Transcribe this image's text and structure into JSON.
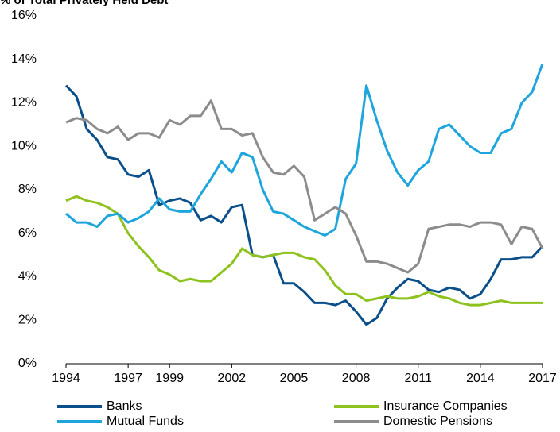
{
  "chart_data": {
    "type": "line",
    "title": "% of Total Privately Held Debt",
    "x": [
      1994,
      1994.5,
      1995,
      1995.5,
      1996,
      1996.5,
      1997,
      1997.5,
      1998,
      1998.5,
      1999,
      1999.5,
      2000,
      2000.5,
      2001,
      2001.5,
      2002,
      2002.5,
      2003,
      2003.5,
      2004,
      2004.5,
      2005,
      2005.5,
      2006,
      2006.5,
      2007,
      2007.5,
      2008,
      2008.5,
      2009,
      2009.5,
      2010,
      2010.5,
      2011,
      2011.5,
      2012,
      2012.5,
      2013,
      2013.5,
      2014,
      2014.5,
      2015,
      2015.5,
      2016,
      2016.5,
      2017
    ],
    "series": [
      {
        "name": "Banks",
        "color": "#0b4f8a",
        "values": [
          12.8,
          12.3,
          10.8,
          10.3,
          9.5,
          9.4,
          8.7,
          8.6,
          8.9,
          7.3,
          7.5,
          7.6,
          7.4,
          6.6,
          6.8,
          6.5,
          7.2,
          7.3,
          5.0,
          4.9,
          5.0,
          3.7,
          3.7,
          3.3,
          2.8,
          2.8,
          2.7,
          2.9,
          2.4,
          1.8,
          2.1,
          3.0,
          3.5,
          3.9,
          3.8,
          3.4,
          3.3,
          3.5,
          3.4,
          3.0,
          3.2,
          3.9,
          4.8,
          4.8,
          4.9,
          4.9,
          5.4
        ]
      },
      {
        "name": "Insurance Companies",
        "color": "#8dc21f",
        "values": [
          7.5,
          7.7,
          7.5,
          7.4,
          7.2,
          6.9,
          6.0,
          5.4,
          4.9,
          4.3,
          4.1,
          3.8,
          3.9,
          3.8,
          3.8,
          4.2,
          4.6,
          5.3,
          5.0,
          4.9,
          5.0,
          5.1,
          5.1,
          4.9,
          4.8,
          4.3,
          3.6,
          3.2,
          3.2,
          2.9,
          3.0,
          3.1,
          3.0,
          3.0,
          3.1,
          3.3,
          3.1,
          3.0,
          2.8,
          2.7,
          2.7,
          2.8,
          2.9,
          2.8,
          2.8,
          2.8,
          2.8
        ]
      },
      {
        "name": "Mutual Funds",
        "color": "#1ea5dc",
        "values": [
          6.9,
          6.5,
          6.5,
          6.3,
          6.8,
          6.9,
          6.5,
          6.7,
          7.0,
          7.6,
          7.1,
          7.0,
          7.0,
          7.8,
          8.5,
          9.3,
          8.8,
          9.7,
          9.5,
          8.0,
          7.0,
          6.9,
          6.6,
          6.3,
          6.1,
          5.9,
          6.2,
          8.5,
          9.2,
          12.8,
          11.2,
          9.8,
          8.8,
          8.2,
          8.9,
          9.3,
          10.8,
          11.0,
          10.5,
          10.0,
          9.7,
          9.7,
          10.6,
          10.8,
          12.0,
          12.5,
          13.8
        ]
      },
      {
        "name": "Domestic Pensions",
        "color": "#8c8c8c",
        "values": [
          11.1,
          11.3,
          11.2,
          10.8,
          10.6,
          10.9,
          10.3,
          10.6,
          10.6,
          10.4,
          11.2,
          11.0,
          11.4,
          11.4,
          12.1,
          10.8,
          10.8,
          10.5,
          10.6,
          9.5,
          8.8,
          8.7,
          9.1,
          8.6,
          6.6,
          6.9,
          7.2,
          6.9,
          5.9,
          4.7,
          4.7,
          4.6,
          4.4,
          4.2,
          4.6,
          6.2,
          6.3,
          6.4,
          6.4,
          6.3,
          6.5,
          6.5,
          6.4,
          5.5,
          6.3,
          6.2,
          5.3
        ]
      }
    ],
    "xlim": [
      1994,
      2017
    ],
    "xticks": [
      1994,
      1997,
      1999,
      2002,
      2005,
      2008,
      2011,
      2014,
      2017
    ],
    "ylim": [
      0,
      16
    ],
    "yticks": [
      {
        "value": 0,
        "label": "0%"
      },
      {
        "value": 2,
        "label": "2%"
      },
      {
        "value": 4,
        "label": "4%"
      },
      {
        "value": 6,
        "label": "6%"
      },
      {
        "value": 8,
        "label": "8%"
      },
      {
        "value": 10,
        "label": "10%"
      },
      {
        "value": 12,
        "label": "12%"
      },
      {
        "value": 14,
        "label": "14%"
      },
      {
        "value": 16,
        "label": "16%"
      }
    ],
    "grid": false
  }
}
